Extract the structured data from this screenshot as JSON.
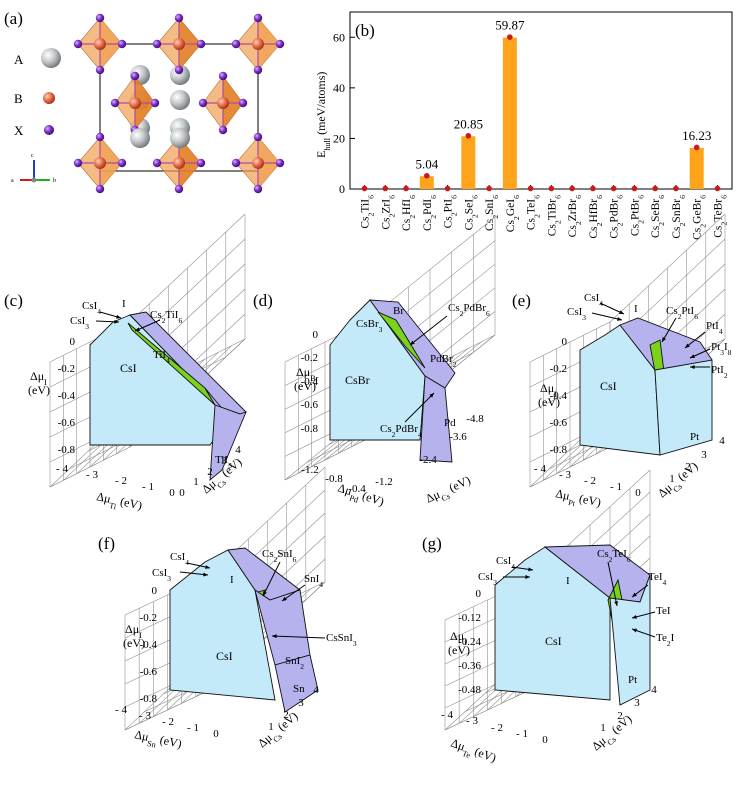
{
  "panels": {
    "a": {
      "label": "(a)",
      "legend": [
        {
          "name": "A",
          "color": "#b8bcbf"
        },
        {
          "name": "B",
          "color": "#e8704a"
        },
        {
          "name": "X",
          "color": "#7a2fc7"
        }
      ],
      "axes": {
        "a": "a",
        "b": "b",
        "c": "c"
      },
      "colors": {
        "octahedron": "#f0a050",
        "octahedron_dark": "#e07a20",
        "cell": "#000000"
      }
    },
    "b": {
      "label": "(b)"
    },
    "c": {
      "label": "(c)"
    },
    "d": {
      "label": "(d)"
    },
    "e": {
      "label": "(e)"
    },
    "f": {
      "label": "(f)"
    },
    "g": {
      "label": "(g)"
    }
  },
  "chart_data": [
    {
      "type": "bar",
      "panel": "b",
      "ylabel": "E_hull (meV/atoms)",
      "ylim": [
        0,
        70
      ],
      "yticks": [
        0,
        20,
        40,
        60
      ],
      "categories": [
        "Cs2TiI6",
        "Cs2ZrI6",
        "Cs2HfI6",
        "Cs2PdI6",
        "Cs2PtI6",
        "Cs2SeI6",
        "Cs2SnI6",
        "Cs2GeI6",
        "Cs2TeI6",
        "Cs2TiBr6",
        "Cs2ZrBr6",
        "Cs2HfBr6",
        "Cs2PdBr6",
        "Cs2PtBr6",
        "Cs2SeBr6",
        "Cs2SnBr6",
        "Cs2GeBr6",
        "Cs2TeBr6"
      ],
      "values": [
        0,
        0,
        0,
        5.04,
        0,
        20.85,
        0,
        59.87,
        0,
        0,
        0,
        0,
        0,
        0,
        0,
        0,
        16.23,
        0
      ],
      "data_labels": [
        "",
        "",
        "",
        "5.04",
        "",
        "20.85",
        "",
        "59.87",
        "",
        "",
        "",
        "",
        "",
        "",
        "",
        "",
        "16.23",
        ""
      ],
      "colors": {
        "bar": "#ffa31a",
        "marker": "#cc1a1a"
      }
    },
    {
      "type": "phase-diagram-3d",
      "panel": "c",
      "zlabel": "Δμ_I (eV)",
      "zticks": [
        "0",
        "-0.2",
        "-0.4",
        "-0.6",
        "-0.8"
      ],
      "xlabel": "Δμ_Ti (eV)",
      "xticks": [
        "- 4",
        "- 3",
        "- 2",
        "- 1",
        "0"
      ],
      "ylabel": "Δμ_Cs (eV)",
      "yticks": [
        "0",
        "1",
        "2",
        "3",
        "4"
      ],
      "phases": [
        "CsI",
        "TiI4",
        "TiI3",
        "I"
      ],
      "annotations": [
        "CsI4",
        "CsI3",
        "Cs2TiI6"
      ]
    },
    {
      "type": "phase-diagram-3d",
      "panel": "d",
      "zlabel": "Δμ_Br (eV)",
      "zticks": [
        "0",
        "-0.2",
        "-0.4",
        "-0.6",
        "-0.8"
      ],
      "xlabel": "Δμ_Pd (eV)",
      "xticks": [
        "-1.2",
        "-0.8",
        "-0.4"
      ],
      "ylabel": "Δμ_Cs (eV)",
      "yticks": [
        "-1.2",
        "-2.4",
        "-3.6",
        "-4.8"
      ],
      "phases": [
        "CsBr",
        "PdBr2",
        "Pd",
        "Br"
      ],
      "annotations": [
        "CsBr3",
        "Cs2PdBr6",
        "Cs2PdBr4"
      ]
    },
    {
      "type": "phase-diagram-3d",
      "panel": "e",
      "zlabel": "Δμ_I (eV)",
      "zticks": [
        "0",
        "-0.2",
        "-0.4",
        "-0.6",
        "-0.8"
      ],
      "xlabel": "Δμ_Pt (eV)",
      "xticks": [
        "- 4",
        "- 3",
        "- 2",
        "- 1",
        "0"
      ],
      "ylabel": "Δμ_Cs (eV)",
      "yticks": [
        "1",
        "2",
        "3",
        "4"
      ],
      "phases": [
        "CsI",
        "Pt",
        "I"
      ],
      "annotations": [
        "CsI4",
        "CsI3",
        "Cs2PtI6",
        "PtI4",
        "Pt3I8",
        "PtI2"
      ]
    },
    {
      "type": "phase-diagram-3d",
      "panel": "f",
      "zlabel": "Δμ_I (eV)",
      "zticks": [
        "0",
        "-0.2",
        "-0.4",
        "-0.6",
        "-0.8"
      ],
      "xlabel": "Δμ_Sn (eV)",
      "xticks": [
        "- 4",
        "- 3",
        "- 2",
        "- 1",
        "0"
      ],
      "ylabel": "Δμ_Cs (eV)",
      "yticks": [
        "1",
        "2",
        "3",
        "4"
      ],
      "phases": [
        "CsI",
        "SnI2",
        "Sn",
        "I"
      ],
      "annotations": [
        "CsI4",
        "CsI3",
        "Cs2SnI6",
        "SnI4",
        "CsSnI3"
      ]
    },
    {
      "type": "phase-diagram-3d",
      "panel": "g",
      "zlabel": "Δμ_I (eV)",
      "zticks": [
        "0",
        "-0.12",
        "-0.24",
        "-0.36",
        "-0.48"
      ],
      "xlabel": "Δμ_Te (eV)",
      "xticks": [
        "- 4",
        "- 3",
        "- 2",
        "- 1",
        "0"
      ],
      "ylabel": "Δμ_Cs (eV)",
      "yticks": [
        "1",
        "2",
        "3",
        "4"
      ],
      "phases": [
        "CsI",
        "Pt",
        "I"
      ],
      "annotations": [
        "CsI4",
        "CsI3",
        "Cs2TeI6",
        "TeI4",
        "TeI",
        "Te2I"
      ]
    }
  ],
  "colors": {
    "face_light": "#c4eaf9",
    "face_purple": "#b5b2ee",
    "face_green": "#79d31d",
    "grid": "#8a8a8a"
  }
}
